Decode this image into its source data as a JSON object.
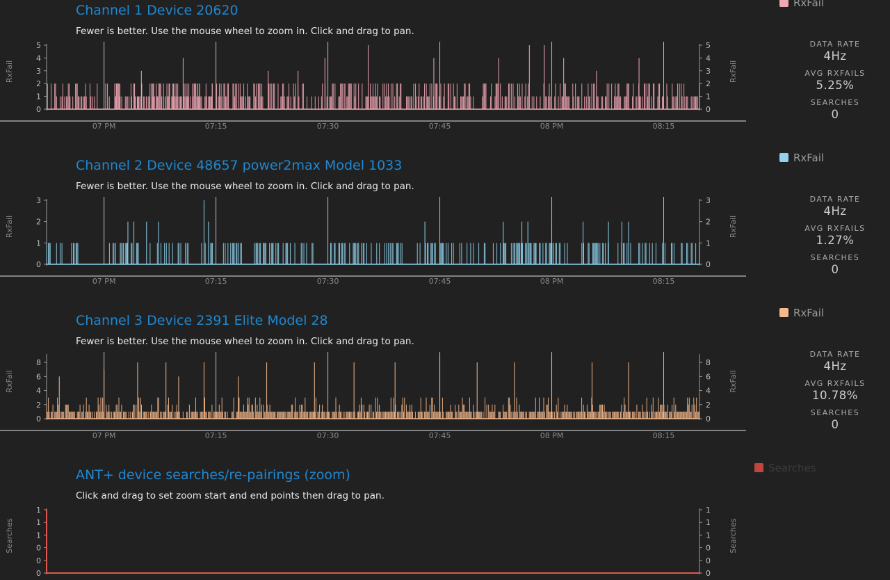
{
  "panels": [
    {
      "title": "Channel 1 Device 20620",
      "subtitle": "Fewer is better. Use the mouse wheel to zoom in. Click and drag to pan.",
      "legend": "RxFail",
      "stats": [
        {
          "label": "DATA RATE",
          "value": "4Hz"
        },
        {
          "label": "AVG RXFAILS",
          "value": "5.25%"
        },
        {
          "label": "SEARCHES",
          "value": "0"
        }
      ]
    },
    {
      "title": "Channel 2 Device 48657 power2max Model 1033",
      "subtitle": "Fewer is better. Use the mouse wheel to zoom in. Click and drag to pan.",
      "legend": "RxFail",
      "stats": [
        {
          "label": "DATA RATE",
          "value": "4Hz"
        },
        {
          "label": "AVG RXFAILS",
          "value": "1.27%"
        },
        {
          "label": "SEARCHES",
          "value": "0"
        }
      ]
    },
    {
      "title": "Channel 3 Device 2391 Elite Model 28",
      "subtitle": "Fewer is better. Use the mouse wheel to zoom in. Click and drag to pan.",
      "legend": "RxFail",
      "stats": [
        {
          "label": "DATA RATE",
          "value": "4Hz"
        },
        {
          "label": "AVG RXFAILS",
          "value": "10.78%"
        },
        {
          "label": "SEARCHES",
          "value": "0"
        }
      ]
    },
    {
      "title": "ANT+ device searches/re-pairings (zoom)",
      "subtitle": "Click and drag to set zoom start and end points then drag to pan.",
      "legend": "Searches"
    }
  ],
  "chart_data": [
    {
      "type": "bar",
      "title": "Channel 1 Device 20620",
      "ylabel": "RxFail",
      "series_name": "RxFail",
      "color": "#f2a7b4",
      "ylim": [
        0,
        5
      ],
      "yticks": [
        "0",
        "1",
        "2",
        "3",
        "4",
        "5"
      ],
      "xticks": [
        "07 PM",
        "07:15",
        "07:30",
        "07:45",
        "08 PM",
        "08:15"
      ],
      "xtick_minutes": [
        0,
        15,
        30,
        45,
        60,
        75
      ],
      "xlim_minutes": [
        -7.7,
        79.8
      ],
      "active_ranges_minutes": [
        [
          -7.7,
          -0.8
        ],
        [
          0,
          14.5
        ],
        [
          1.5,
          79.8
        ]
      ],
      "spikes": [
        {
          "t": 10.6,
          "v": 4
        },
        {
          "t": 29.6,
          "v": 4
        },
        {
          "t": 35.4,
          "v": 5
        },
        {
          "t": 44.2,
          "v": 4
        },
        {
          "t": 52.9,
          "v": 4
        },
        {
          "t": 57.0,
          "v": 5
        },
        {
          "t": 59.0,
          "v": 5
        },
        {
          "t": 61.6,
          "v": 4
        },
        {
          "t": 71.7,
          "v": 4
        },
        {
          "t": 22.0,
          "v": 3
        },
        {
          "t": 26.0,
          "v": 3
        },
        {
          "t": 5.0,
          "v": 3
        },
        {
          "t": 66.0,
          "v": 3
        }
      ],
      "typical_max": 2
    },
    {
      "type": "bar",
      "title": "Channel 2 Device 48657 power2max Model 1033",
      "ylabel": "RxFail",
      "series_name": "RxFail",
      "color": "#8fd3ee",
      "ylim": [
        0,
        3
      ],
      "yticks": [
        "0",
        "1",
        "2",
        "3"
      ],
      "xticks": [
        "07 PM",
        "07:15",
        "07:30",
        "07:45",
        "08 PM",
        "08:15"
      ],
      "xtick_minutes": [
        0,
        15,
        30,
        45,
        60,
        75
      ],
      "xlim_minutes": [
        -7.7,
        79.8
      ],
      "spikes": [
        {
          "t": 13.4,
          "v": 3
        },
        {
          "t": 3.2,
          "v": 2
        },
        {
          "t": 4.0,
          "v": 2
        },
        {
          "t": 7.3,
          "v": 2
        },
        {
          "t": 14.0,
          "v": 2
        },
        {
          "t": 5.7,
          "v": 2
        },
        {
          "t": 56.8,
          "v": 2
        },
        {
          "t": 60.0,
          "v": 2
        },
        {
          "t": 64.2,
          "v": 2
        },
        {
          "t": 67.6,
          "v": 2
        },
        {
          "t": 69.4,
          "v": 2
        },
        {
          "t": 70.3,
          "v": 2
        },
        {
          "t": 43.0,
          "v": 2
        },
        {
          "t": 53.5,
          "v": 2
        },
        {
          "t": 56.0,
          "v": 2
        }
      ],
      "typical_max": 1
    },
    {
      "type": "bar",
      "title": "Channel 3 Device 2391 Elite Model 28",
      "ylabel": "RxFail",
      "series_name": "RxFail",
      "color": "#f5b98d",
      "ylim": [
        0,
        9
      ],
      "yticks": [
        "0",
        "2",
        "4",
        "6",
        "8"
      ],
      "xticks": [
        "07 PM",
        "07:15",
        "07:30",
        "07:45",
        "08 PM",
        "08:15"
      ],
      "xtick_minutes": [
        0,
        15,
        30,
        45,
        60,
        75
      ],
      "xlim_minutes": [
        -7.7,
        79.8
      ],
      "spikes": [
        {
          "t": 4.5,
          "v": 8
        },
        {
          "t": 8.3,
          "v": 8
        },
        {
          "t": 13.4,
          "v": 8
        },
        {
          "t": 21.8,
          "v": 8
        },
        {
          "t": 28.2,
          "v": 8
        },
        {
          "t": 33.5,
          "v": 8
        },
        {
          "t": 39.0,
          "v": 8
        },
        {
          "t": 45.0,
          "v": 9
        },
        {
          "t": 50.0,
          "v": 8
        },
        {
          "t": 55.0,
          "v": 8
        },
        {
          "t": 60.0,
          "v": 9
        },
        {
          "t": 65.4,
          "v": 8
        },
        {
          "t": 70.3,
          "v": 8
        },
        {
          "t": 75.0,
          "v": 7
        },
        {
          "t": -6.0,
          "v": 6
        },
        {
          "t": 0.0,
          "v": 7
        },
        {
          "t": 10.0,
          "v": 6
        },
        {
          "t": 18.0,
          "v": 6
        }
      ],
      "typical_max": 3
    },
    {
      "type": "line",
      "title": "ANT+ device searches/re-pairings (zoom)",
      "ylabel": "Searches",
      "series_name": "Searches",
      "color": "#e0584f",
      "ylim": [
        0,
        1
      ],
      "yticks": [
        "0",
        "0",
        "0",
        "1",
        "1",
        "1"
      ],
      "values_minutes": [
        [
          -8.0,
          1
        ],
        [
          -7.9,
          0
        ],
        [
          79.8,
          0
        ]
      ]
    }
  ]
}
